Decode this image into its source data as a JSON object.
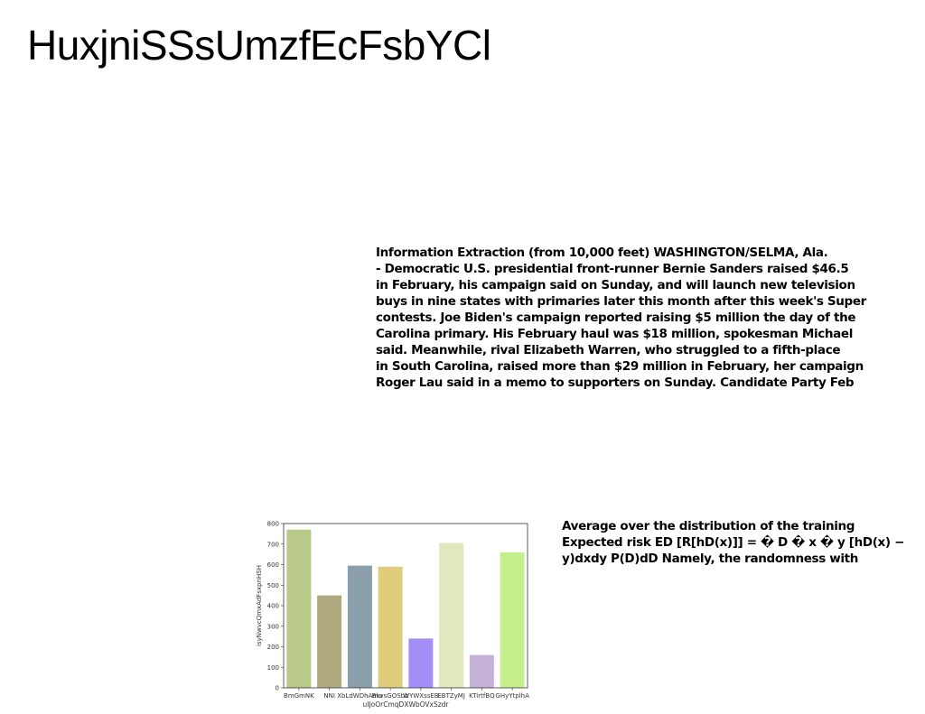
{
  "title": "HuxjniSSsUmzfEcFsbYCl",
  "article": {
    "lines": [
      "Information Extraction (from 10,000 feet) WASHINGTON/SELMA, Ala.",
      "- Democratic U.S. presidential front-runner Bernie Sanders raised $46.5",
      "in February, his campaign said on Sunday, and will launch new television",
      "buys in nine states with primaries later this month after this week's Super",
      "contests. Joe Biden's campaign reported raising $5 million the day of the",
      "Carolina primary. His February haul was $18 million, spokesman Michael",
      "said. Meanwhile, rival Elizabeth Warren, who struggled to a fifth-place",
      "in South Carolina, raised more than $29 million in February, her campaign",
      "Roger Lau said in a memo to supporters on Sunday. Candidate Party Feb"
    ]
  },
  "risk_text": {
    "lines": [
      "Average over the distribution of the training",
      "Expected risk ED [R[hD(x)]] = � D � x � y [hD(x) −",
      "y)dxdy P(D)dD Namely, the randomness with"
    ]
  },
  "chart_data": {
    "type": "bar",
    "categories": [
      "BmGmNK",
      "NNI",
      "XbLdWDhAmu",
      "BkvsGOSbb",
      "WYWXssEB",
      "EBTZyMJ",
      "KTirtfBQ",
      "GHyYtplhA"
    ],
    "values": [
      770,
      450,
      595,
      590,
      240,
      705,
      160,
      660
    ],
    "colors": [
      "#b8c98a",
      "#b0aa80",
      "#8a9eac",
      "#e0cd7c",
      "#a48ef5",
      "#e1e8bd",
      "#c5b2d8",
      "#c5ef8c"
    ],
    "title": "",
    "xlabel": "uIJoOrCmqDXWbOVxSzdr",
    "ylabel": "isyNwvcQmxAdFsxpnHSH",
    "ylim": [
      0,
      800
    ],
    "yticks": [
      0,
      100,
      200,
      300,
      400,
      500,
      600,
      700,
      800
    ],
    "grid": false
  }
}
